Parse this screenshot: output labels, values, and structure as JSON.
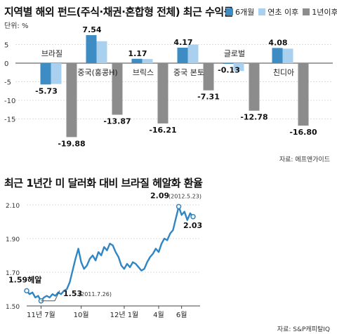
{
  "colors": {
    "six_month": "#3d8dc4",
    "ytd": "#a9d0ee",
    "one_year": "#8c8c8c",
    "line": "#2f86c2",
    "grid": "#dddddd"
  },
  "chart_data": [
    {
      "type": "bar",
      "title": "지역별 해외 펀드(주식·채권·혼합형 전체) 최근 수익률",
      "unit": "단위: %",
      "source": "자료: 에프앤가이드",
      "categories": [
        "브라질",
        "중국(홍콩H)",
        "브릭스",
        "중국 본토",
        "글로벌",
        "친디아"
      ],
      "series": [
        {
          "name": "6개월",
          "values": [
            -5.73,
            7.54,
            1.17,
            4.17,
            -0.13,
            4.08
          ]
        },
        {
          "name": "연초 이후",
          "values": [
            -5.6,
            5.9,
            1.1,
            5.0,
            -2.1,
            3.9
          ]
        },
        {
          "name": "1년이후",
          "values": [
            -19.88,
            -13.87,
            -16.21,
            -7.31,
            -12.78,
            -16.8
          ]
        }
      ],
      "value_labels": [
        "-5.73",
        "7.54",
        "1.17",
        "4.17",
        "-0.13",
        "4.08",
        "-19.88",
        "-13.87",
        "-16.21",
        "-7.31",
        "-12.78",
        "-16.80"
      ],
      "yticks": [
        "5",
        "0",
        "-5",
        "-10",
        "-15"
      ],
      "ylim": [
        -20,
        9
      ],
      "grid": true
    },
    {
      "type": "line",
      "title": "최근 1년간 미 달러화 대비 브라질 헤알화 환율",
      "source": "자료: S&P캐피탈IQ",
      "xticks": [
        "11년 7월",
        "10월",
        "12년 1월",
        "4월",
        "6월"
      ],
      "yticks": [
        "2.10",
        "1.90",
        "1.70",
        "1.50"
      ],
      "ylim": [
        1.5,
        2.1
      ],
      "annotations": {
        "start_label": "1.59헤알",
        "min_value": "1.53",
        "min_date": "(2011.7.26)",
        "max_value": "2.09",
        "max_date": "(2012.5.23)",
        "end_value": "2.03"
      },
      "values": [
        1.59,
        1.57,
        1.58,
        1.55,
        1.56,
        1.53,
        1.55,
        1.56,
        1.55,
        1.57,
        1.56,
        1.58,
        1.57,
        1.59,
        1.6,
        1.64,
        1.71,
        1.78,
        1.84,
        1.76,
        1.72,
        1.74,
        1.78,
        1.8,
        1.77,
        1.82,
        1.8,
        1.85,
        1.83,
        1.87,
        1.86,
        1.82,
        1.79,
        1.74,
        1.72,
        1.75,
        1.73,
        1.76,
        1.75,
        1.73,
        1.71,
        1.72,
        1.76,
        1.79,
        1.81,
        1.84,
        1.82,
        1.87,
        1.9,
        1.89,
        1.93,
        1.95,
        2.02,
        2.09,
        2.04,
        2.06,
        2.01,
        2.05,
        2.03
      ]
    }
  ]
}
